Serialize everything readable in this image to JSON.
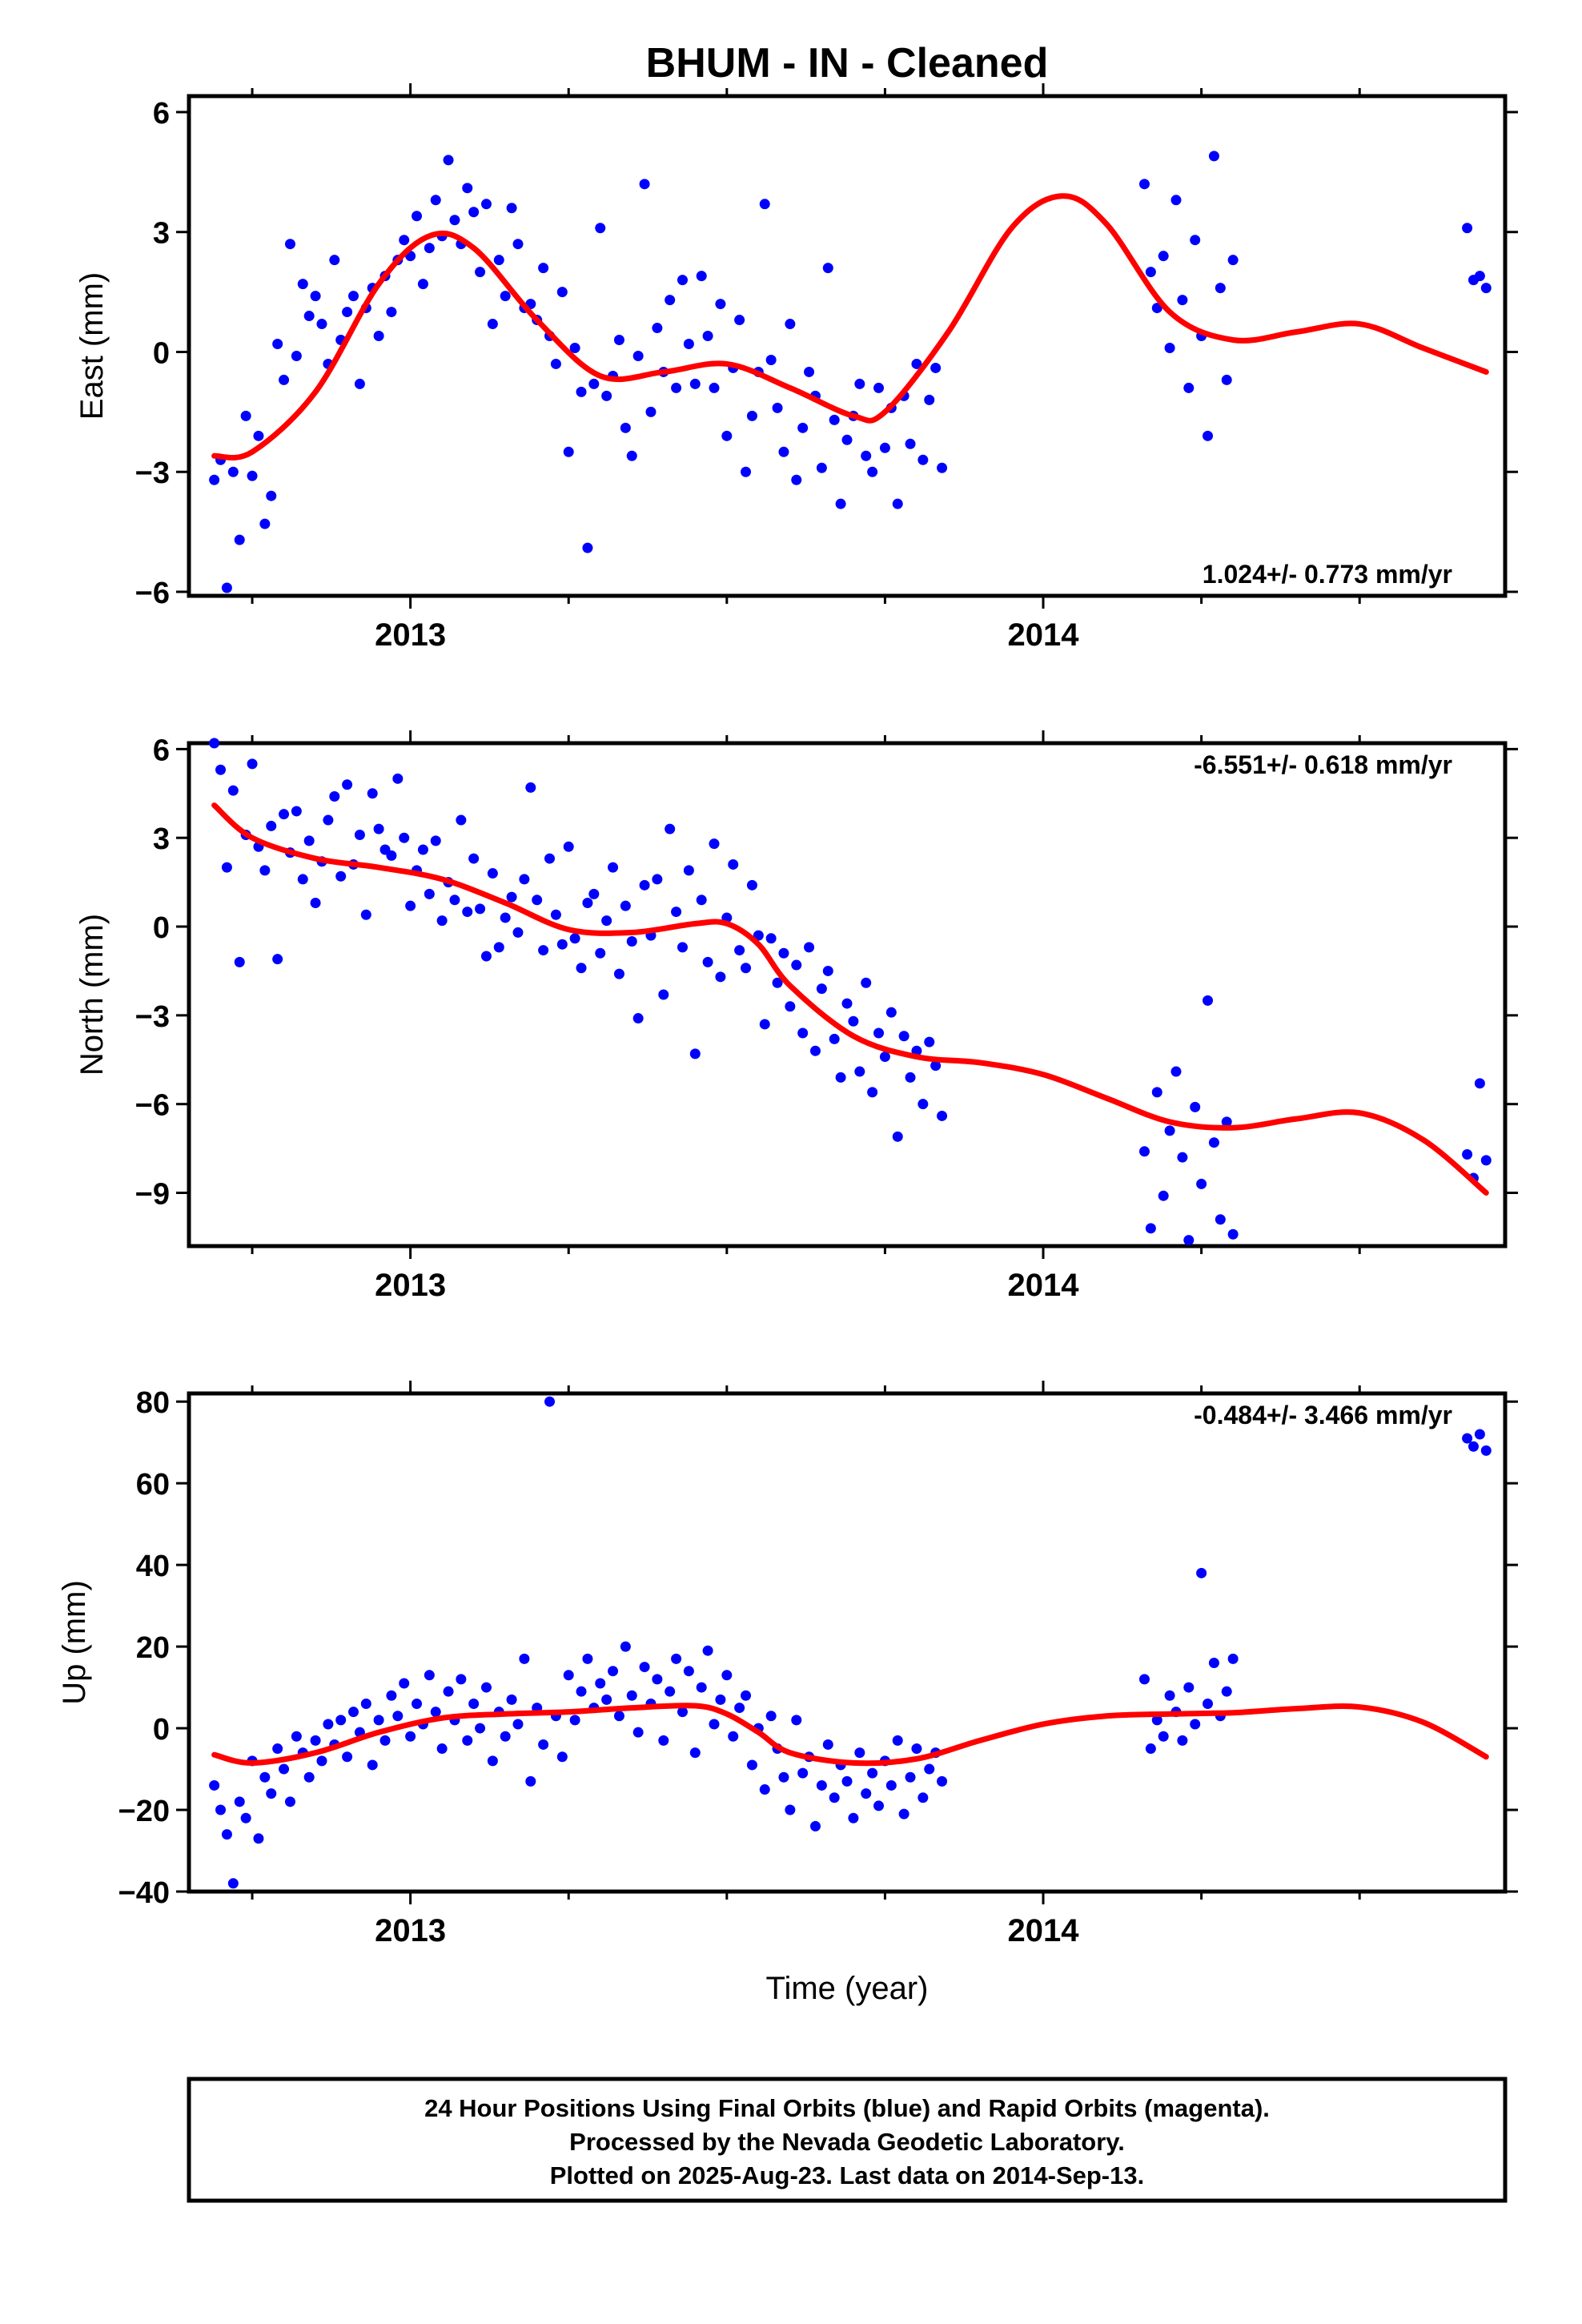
{
  "title": "BHUM  - IN - Cleaned",
  "xlabel": "Time (year)",
  "colors": {
    "final_orbits": "#0000ff",
    "fit": "#ff0000",
    "frame": "#000000"
  },
  "chart_data": [
    {
      "type": "scatter",
      "panel": "east",
      "ylabel": "East (mm)",
      "ylim": [
        -6.1,
        6.4
      ],
      "yticks": [
        6,
        3,
        0,
        -3,
        -6
      ],
      "xlim": [
        2012.65,
        2014.73
      ],
      "xticks": [
        2013,
        2014
      ],
      "xtick_labels": [
        "2013",
        "2014"
      ],
      "rate": "1.024+/- 0.773 mm/yr",
      "rate_position": "bottom-right",
      "fit": {
        "x": [
          2012.69,
          2012.75,
          2012.85,
          2012.95,
          2013.03,
          2013.1,
          2013.2,
          2013.3,
          2013.4,
          2013.5,
          2013.6,
          2013.7,
          2013.75,
          2013.85,
          2013.95,
          2014.03,
          2014.1,
          2014.2,
          2014.3,
          2014.4,
          2014.5,
          2014.6,
          2014.7
        ],
        "y": [
          -2.6,
          -2.5,
          -1.0,
          1.7,
          2.9,
          2.6,
          0.8,
          -0.6,
          -0.5,
          -0.3,
          -0.9,
          -1.6,
          -1.5,
          0.5,
          3.1,
          3.9,
          3.2,
          1.0,
          0.3,
          0.5,
          0.7,
          0.1,
          -0.5
        ]
      },
      "points": {
        "x": [
          2012.69,
          2012.7,
          2012.71,
          2012.72,
          2012.73,
          2012.74,
          2012.75,
          2012.76,
          2012.77,
          2012.78,
          2012.79,
          2012.8,
          2012.81,
          2012.82,
          2012.83,
          2012.84,
          2012.85,
          2012.86,
          2012.87,
          2012.88,
          2012.89,
          2012.9,
          2012.91,
          2012.92,
          2012.93,
          2012.94,
          2012.95,
          2012.96,
          2012.97,
          2012.98,
          2012.99,
          2013.0,
          2013.01,
          2013.02,
          2013.03,
          2013.04,
          2013.05,
          2013.06,
          2013.07,
          2013.08,
          2013.09,
          2013.1,
          2013.11,
          2013.12,
          2013.13,
          2013.14,
          2013.15,
          2013.16,
          2013.17,
          2013.18,
          2013.19,
          2013.2,
          2013.21,
          2013.22,
          2013.23,
          2013.24,
          2013.25,
          2013.26,
          2013.27,
          2013.28,
          2013.29,
          2013.3,
          2013.31,
          2013.32,
          2013.33,
          2013.34,
          2013.35,
          2013.36,
          2013.37,
          2013.38,
          2013.39,
          2013.4,
          2013.41,
          2013.42,
          2013.43,
          2013.44,
          2013.45,
          2013.46,
          2013.47,
          2013.48,
          2013.49,
          2013.5,
          2013.51,
          2013.52,
          2013.53,
          2013.54,
          2013.55,
          2013.56,
          2013.57,
          2013.58,
          2013.59,
          2013.6,
          2013.61,
          2013.62,
          2013.63,
          2013.64,
          2013.65,
          2013.66,
          2013.67,
          2013.68,
          2013.69,
          2013.7,
          2013.71,
          2013.72,
          2013.73,
          2013.74,
          2013.75,
          2013.76,
          2013.77,
          2013.78,
          2013.79,
          2013.8,
          2013.81,
          2013.82,
          2013.83,
          2013.84,
          2014.16,
          2014.17,
          2014.18,
          2014.19,
          2014.2,
          2014.21,
          2014.22,
          2014.23,
          2014.24,
          2014.25,
          2014.26,
          2014.27,
          2014.28,
          2014.29,
          2014.3,
          2014.67,
          2014.68,
          2014.69,
          2014.7
        ],
        "y": [
          -3.2,
          -2.7,
          -5.9,
          -3.0,
          -4.7,
          -1.6,
          -3.1,
          -2.1,
          -4.3,
          -3.6,
          0.2,
          -0.7,
          2.7,
          -0.1,
          1.7,
          0.9,
          1.4,
          0.7,
          -0.3,
          2.3,
          0.3,
          1.0,
          1.4,
          -0.8,
          1.1,
          1.6,
          0.4,
          1.9,
          1.0,
          2.3,
          2.8,
          2.4,
          3.4,
          1.7,
          2.6,
          3.8,
          2.9,
          4.8,
          3.3,
          2.7,
          4.1,
          3.5,
          2.0,
          3.7,
          0.7,
          2.3,
          1.4,
          3.6,
          2.7,
          1.1,
          1.2,
          0.8,
          2.1,
          0.4,
          -0.3,
          1.5,
          -2.5,
          0.1,
          -1.0,
          -4.9,
          -0.8,
          3.1,
          -1.1,
          -0.6,
          0.3,
          -1.9,
          -2.6,
          -0.1,
          4.2,
          -1.5,
          0.6,
          -0.5,
          1.3,
          -0.9,
          1.8,
          0.2,
          -0.8,
          1.9,
          0.4,
          -0.9,
          1.2,
          -2.1,
          -0.4,
          0.8,
          -3.0,
          -1.6,
          -0.5,
          3.7,
          -0.2,
          -1.4,
          -2.5,
          0.7,
          -3.2,
          -1.9,
          -0.5,
          -1.1,
          -2.9,
          2.1,
          -1.7,
          -3.8,
          -2.2,
          -1.6,
          -0.8,
          -2.6,
          -3.0,
          -0.9,
          -2.4,
          -1.4,
          -3.8,
          -1.1,
          -2.3,
          -0.3,
          -2.7,
          -1.2,
          -0.4,
          -2.9,
          4.2,
          2.0,
          1.1,
          2.4,
          0.1,
          3.8,
          1.3,
          -0.9,
          2.8,
          0.4,
          -2.1,
          4.9,
          1.6,
          -0.7,
          2.3,
          3.1,
          1.8,
          1.9,
          1.6
        ]
      }
    },
    {
      "type": "scatter",
      "panel": "north",
      "ylabel": "North (mm)",
      "ylim": [
        -10.8,
        6.2
      ],
      "yticks": [
        6,
        3,
        0,
        -3,
        -6,
        -9
      ],
      "xlim": [
        2012.65,
        2014.73
      ],
      "xticks": [
        2013,
        2014
      ],
      "xtick_labels": [
        "2013",
        "2014"
      ],
      "rate": "-6.551+/- 0.618 mm/yr",
      "rate_position": "top-right",
      "fit": {
        "x": [
          2012.69,
          2012.75,
          2012.85,
          2012.95,
          2013.05,
          2013.15,
          2013.25,
          2013.35,
          2013.45,
          2013.5,
          2013.55,
          2013.6,
          2013.7,
          2013.8,
          2013.9,
          2014.0,
          2014.1,
          2014.2,
          2014.3,
          2014.4,
          2014.5,
          2014.6,
          2014.7
        ],
        "y": [
          4.1,
          3.0,
          2.3,
          2.0,
          1.6,
          0.8,
          -0.1,
          -0.2,
          0.1,
          0.1,
          -0.6,
          -2.0,
          -3.7,
          -4.4,
          -4.6,
          -5.0,
          -5.8,
          -6.6,
          -6.8,
          -6.5,
          -6.3,
          -7.2,
          -9.0
        ]
      },
      "points": {
        "x": [
          2012.69,
          2012.7,
          2012.71,
          2012.72,
          2012.73,
          2012.74,
          2012.75,
          2012.76,
          2012.77,
          2012.78,
          2012.79,
          2012.8,
          2012.81,
          2012.82,
          2012.83,
          2012.84,
          2012.85,
          2012.86,
          2012.87,
          2012.88,
          2012.89,
          2012.9,
          2012.91,
          2012.92,
          2012.93,
          2012.94,
          2012.95,
          2012.96,
          2012.97,
          2012.98,
          2012.99,
          2013.0,
          2013.01,
          2013.02,
          2013.03,
          2013.04,
          2013.05,
          2013.06,
          2013.07,
          2013.08,
          2013.09,
          2013.1,
          2013.11,
          2013.12,
          2013.13,
          2013.14,
          2013.15,
          2013.16,
          2013.17,
          2013.18,
          2013.19,
          2013.2,
          2013.21,
          2013.22,
          2013.23,
          2013.24,
          2013.25,
          2013.26,
          2013.27,
          2013.28,
          2013.29,
          2013.3,
          2013.31,
          2013.32,
          2013.33,
          2013.34,
          2013.35,
          2013.36,
          2013.37,
          2013.38,
          2013.39,
          2013.4,
          2013.41,
          2013.42,
          2013.43,
          2013.44,
          2013.45,
          2013.46,
          2013.47,
          2013.48,
          2013.49,
          2013.5,
          2013.51,
          2013.52,
          2013.53,
          2013.54,
          2013.55,
          2013.56,
          2013.57,
          2013.58,
          2013.59,
          2013.6,
          2013.61,
          2013.62,
          2013.63,
          2013.64,
          2013.65,
          2013.66,
          2013.67,
          2013.68,
          2013.69,
          2013.7,
          2013.71,
          2013.72,
          2013.73,
          2013.74,
          2013.75,
          2013.76,
          2013.77,
          2013.78,
          2013.79,
          2013.8,
          2013.81,
          2013.82,
          2013.83,
          2013.84,
          2014.16,
          2014.17,
          2014.18,
          2014.19,
          2014.2,
          2014.21,
          2014.22,
          2014.23,
          2014.24,
          2014.25,
          2014.26,
          2014.27,
          2014.28,
          2014.29,
          2014.3,
          2014.67,
          2014.68,
          2014.69,
          2014.7
        ],
        "y": [
          6.2,
          5.3,
          2.0,
          4.6,
          -1.2,
          3.1,
          5.5,
          2.7,
          1.9,
          3.4,
          -1.1,
          3.8,
          2.5,
          3.9,
          1.6,
          2.9,
          0.8,
          2.2,
          3.6,
          4.4,
          1.7,
          4.8,
          2.1,
          3.1,
          0.4,
          4.5,
          3.3,
          2.6,
          2.4,
          5.0,
          3.0,
          0.7,
          1.9,
          2.6,
          1.1,
          2.9,
          0.2,
          1.5,
          0.9,
          3.6,
          0.5,
          2.3,
          0.6,
          -1.0,
          1.8,
          -0.7,
          0.3,
          1.0,
          -0.2,
          1.6,
          4.7,
          0.9,
          -0.8,
          2.3,
          0.4,
          -0.6,
          2.7,
          -0.4,
          -1.4,
          0.8,
          1.1,
          -0.9,
          0.2,
          2.0,
          -1.6,
          0.7,
          -0.5,
          -3.1,
          1.4,
          -0.3,
          1.6,
          -2.3,
          3.3,
          0.5,
          -0.7,
          1.9,
          -4.3,
          0.9,
          -1.2,
          2.8,
          -1.7,
          0.3,
          2.1,
          -0.8,
          -1.4,
          1.4,
          -0.3,
          -3.3,
          -0.4,
          -1.9,
          -0.9,
          -2.7,
          -1.3,
          -3.6,
          -0.7,
          -4.2,
          -2.1,
          -1.5,
          -3.8,
          -5.1,
          -2.6,
          -3.2,
          -4.9,
          -1.9,
          -5.6,
          -3.6,
          -4.4,
          -2.9,
          -7.1,
          -3.7,
          -5.1,
          -4.2,
          -6.0,
          -3.9,
          -4.7,
          -6.4,
          -7.6,
          -10.2,
          -5.6,
          -9.1,
          -6.9,
          -4.9,
          -7.8,
          -10.6,
          -6.1,
          -8.7,
          -2.5,
          -7.3,
          -9.9,
          -6.6,
          -10.4,
          -7.7,
          -8.5,
          -5.3,
          -7.9
        ]
      }
    },
    {
      "type": "scatter",
      "panel": "up",
      "ylabel": "Up (mm)",
      "ylim": [
        -40,
        82
      ],
      "yticks": [
        80,
        60,
        40,
        20,
        0,
        -20,
        -40
      ],
      "xlim": [
        2012.65,
        2014.73
      ],
      "xticks": [
        2013,
        2014
      ],
      "xtick_labels": [
        "2013",
        "2014"
      ],
      "rate": "-0.484+/- 3.466 mm/yr",
      "rate_position": "top-right",
      "fit": {
        "x": [
          2012.69,
          2012.75,
          2012.85,
          2012.95,
          2013.05,
          2013.15,
          2013.25,
          2013.35,
          2013.45,
          2013.5,
          2013.55,
          2013.6,
          2013.7,
          2013.8,
          2013.9,
          2014.0,
          2014.1,
          2014.2,
          2014.3,
          2014.4,
          2014.5,
          2014.6,
          2014.7
        ],
        "y": [
          -6.5,
          -8.5,
          -6.0,
          -1.0,
          2.5,
          3.5,
          4.0,
          5.0,
          5.5,
          3.5,
          -1.0,
          -6.0,
          -8.5,
          -7.5,
          -3.0,
          1.0,
          3.0,
          3.5,
          3.8,
          4.8,
          5.2,
          1.5,
          -7.0
        ]
      },
      "points": {
        "x": [
          2012.69,
          2012.7,
          2012.71,
          2012.72,
          2012.73,
          2012.74,
          2012.75,
          2012.76,
          2012.77,
          2012.78,
          2012.79,
          2012.8,
          2012.81,
          2012.82,
          2012.83,
          2012.84,
          2012.85,
          2012.86,
          2012.87,
          2012.88,
          2012.89,
          2012.9,
          2012.91,
          2012.92,
          2012.93,
          2012.94,
          2012.95,
          2012.96,
          2012.97,
          2012.98,
          2012.99,
          2013.0,
          2013.01,
          2013.02,
          2013.03,
          2013.04,
          2013.05,
          2013.06,
          2013.07,
          2013.08,
          2013.09,
          2013.1,
          2013.11,
          2013.12,
          2013.13,
          2013.14,
          2013.15,
          2013.16,
          2013.17,
          2013.18,
          2013.19,
          2013.2,
          2013.21,
          2013.22,
          2013.23,
          2013.24,
          2013.25,
          2013.26,
          2013.27,
          2013.28,
          2013.29,
          2013.3,
          2013.31,
          2013.32,
          2013.33,
          2013.34,
          2013.35,
          2013.36,
          2013.37,
          2013.38,
          2013.39,
          2013.4,
          2013.41,
          2013.42,
          2013.43,
          2013.44,
          2013.45,
          2013.46,
          2013.47,
          2013.48,
          2013.49,
          2013.5,
          2013.51,
          2013.52,
          2013.53,
          2013.54,
          2013.55,
          2013.56,
          2013.57,
          2013.58,
          2013.59,
          2013.6,
          2013.61,
          2013.62,
          2013.63,
          2013.64,
          2013.65,
          2013.66,
          2013.67,
          2013.68,
          2013.69,
          2013.7,
          2013.71,
          2013.72,
          2013.73,
          2013.74,
          2013.75,
          2013.76,
          2013.77,
          2013.78,
          2013.79,
          2013.8,
          2013.81,
          2013.82,
          2013.83,
          2013.84,
          2014.16,
          2014.17,
          2014.18,
          2014.19,
          2014.2,
          2014.21,
          2014.22,
          2014.23,
          2014.24,
          2014.25,
          2014.26,
          2014.27,
          2014.28,
          2014.29,
          2014.3,
          2014.67,
          2014.68,
          2014.69,
          2014.7
        ],
        "y": [
          -14,
          -20,
          -26,
          -38,
          -18,
          -22,
          -8,
          -27,
          -12,
          -16,
          -5,
          -10,
          -18,
          -2,
          -6,
          -12,
          -3,
          -8,
          1,
          -4,
          2,
          -7,
          4,
          -1,
          6,
          -9,
          2,
          -3,
          8,
          3,
          11,
          -2,
          6,
          1,
          13,
          4,
          -5,
          9,
          2,
          12,
          -3,
          6,
          0,
          10,
          -8,
          4,
          -2,
          7,
          1,
          17,
          -13,
          5,
          -4,
          80,
          3,
          -7,
          13,
          2,
          9,
          17,
          5,
          11,
          7,
          14,
          3,
          20,
          8,
          -1,
          15,
          6,
          12,
          -3,
          9,
          17,
          4,
          14,
          -6,
          10,
          19,
          1,
          7,
          13,
          -2,
          5,
          8,
          -9,
          0,
          -15,
          3,
          -5,
          -12,
          -20,
          2,
          -11,
          -7,
          -24,
          -14,
          -4,
          -17,
          -9,
          -13,
          -22,
          -6,
          -16,
          -11,
          -19,
          -8,
          -14,
          -3,
          -21,
          -12,
          -5,
          -17,
          -10,
          -6,
          -13,
          12,
          -5,
          2,
          -2,
          8,
          4,
          -3,
          10,
          1,
          38,
          6,
          16,
          3,
          9,
          17,
          71,
          69,
          72,
          68
        ]
      }
    }
  ],
  "footer": {
    "line1": "24 Hour Positions Using Final Orbits (blue) and Rapid Orbits (magenta).",
    "line2": "Processed by the Nevada Geodetic Laboratory.",
    "line3": "Plotted on 2025-Aug-23. Last data on 2014-Sep-13."
  }
}
